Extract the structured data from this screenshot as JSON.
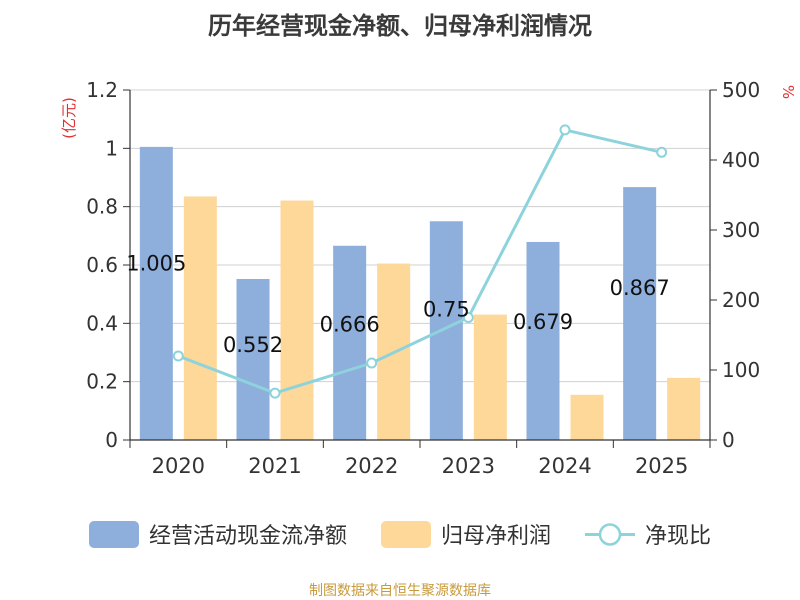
{
  "chart_data": {
    "type": "bar+line",
    "title": "历年经营现金净额、归母净利润情况",
    "categories": [
      "2020",
      "2021",
      "2022",
      "2023",
      "2024",
      "2025"
    ],
    "series": [
      {
        "name": "经营活动现金流净额",
        "axis": "left",
        "type": "bar",
        "color": "#8eaedb",
        "values": [
          1.005,
          0.552,
          0.666,
          0.75,
          0.679,
          0.867
        ],
        "labels": [
          "1.005",
          "0.552",
          "0.666",
          "0.75",
          "0.679",
          "0.867"
        ]
      },
      {
        "name": "归母净利润",
        "axis": "left",
        "type": "bar",
        "color": "#fdd899",
        "values": [
          0.835,
          0.821,
          0.605,
          0.43,
          0.155,
          0.213
        ]
      },
      {
        "name": "净现比",
        "axis": "right",
        "type": "line",
        "color": "#8dd3dc",
        "values": [
          120,
          67,
          110,
          175,
          443,
          411
        ]
      }
    ],
    "y_left": {
      "unit": "(亿元)",
      "min": 0,
      "max": 1.2,
      "ticks": [
        "0",
        "0.2",
        "0.4",
        "0.6",
        "0.8",
        "1",
        "1.2"
      ]
    },
    "y_right": {
      "unit": "%",
      "min": 0,
      "max": 500,
      "ticks": [
        "0",
        "100",
        "200",
        "300",
        "400",
        "500"
      ]
    },
    "unit_color": "#e03030"
  },
  "source": "制图数据来自恒生聚源数据库"
}
